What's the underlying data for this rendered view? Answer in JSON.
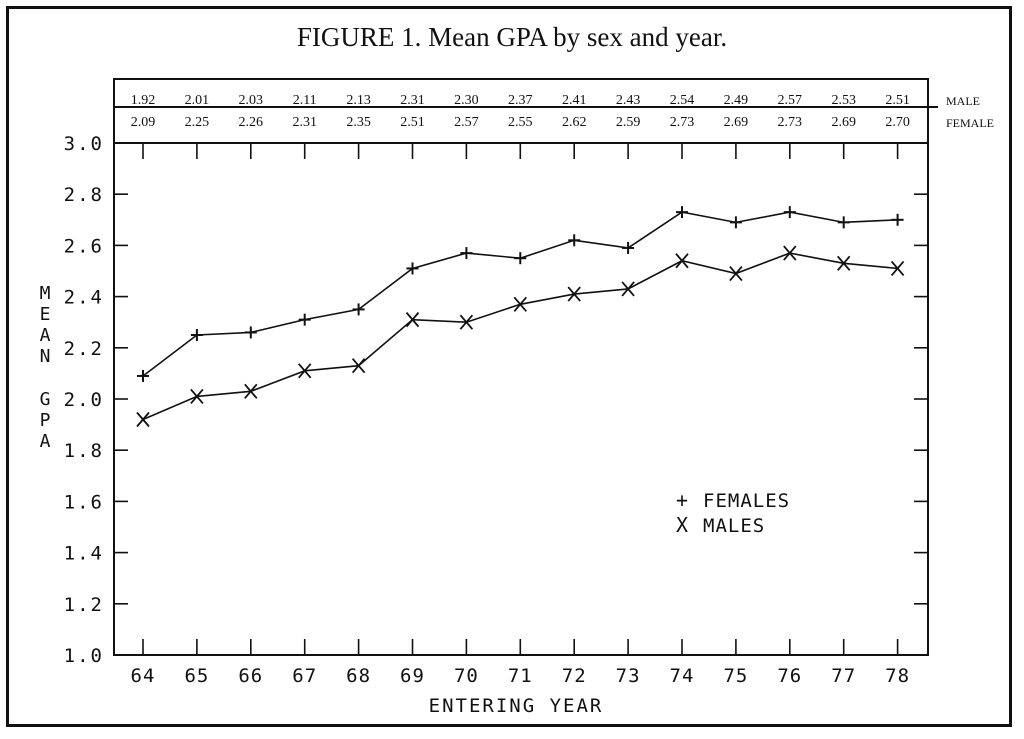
{
  "chart_data": {
    "type": "line",
    "title": "FIGURE 1. Mean GPA by sex and year.",
    "xlabel": "ENTERING YEAR",
    "ylabel": "MEAN GPA",
    "x": [
      "64",
      "65",
      "66",
      "67",
      "68",
      "69",
      "70",
      "71",
      "72",
      "73",
      "74",
      "75",
      "76",
      "77",
      "78"
    ],
    "yticks": [
      "1.0",
      "1.2",
      "1.4",
      "1.6",
      "1.8",
      "2.0",
      "2.2",
      "2.4",
      "2.6",
      "2.8",
      "3.0"
    ],
    "ylim": [
      1.0,
      3.0
    ],
    "table_row_labels": [
      "MALE",
      "FEMALE"
    ],
    "series": [
      {
        "name": "FEMALES",
        "marker": "+",
        "values": [
          2.09,
          2.25,
          2.26,
          2.31,
          2.35,
          2.51,
          2.57,
          2.55,
          2.62,
          2.59,
          2.73,
          2.69,
          2.73,
          2.69,
          2.7
        ],
        "labels": [
          "2.09",
          "2.25",
          "2.26",
          "2.31",
          "2.35",
          "2.51",
          "2.57",
          "2.55",
          "2.62",
          "2.59",
          "2.73",
          "2.69",
          "2.73",
          "2.69",
          "2.70"
        ]
      },
      {
        "name": "MALES",
        "marker": "X",
        "values": [
          1.92,
          2.01,
          2.03,
          2.11,
          2.13,
          2.31,
          2.3,
          2.37,
          2.41,
          2.43,
          2.54,
          2.49,
          2.57,
          2.53,
          2.51
        ],
        "labels": [
          "1.92",
          "2.01",
          "2.03",
          "2.11",
          "2.13",
          "2.31",
          "2.30",
          "2.37",
          "2.41",
          "2.43",
          "2.54",
          "2.49",
          "2.57",
          "2.53",
          "2.51"
        ]
      }
    ],
    "legend": [
      {
        "symbol": "+",
        "label": "FEMALES"
      },
      {
        "symbol": "X",
        "label": "MALES"
      }
    ],
    "legend_position": "lower-right",
    "grid": false
  }
}
